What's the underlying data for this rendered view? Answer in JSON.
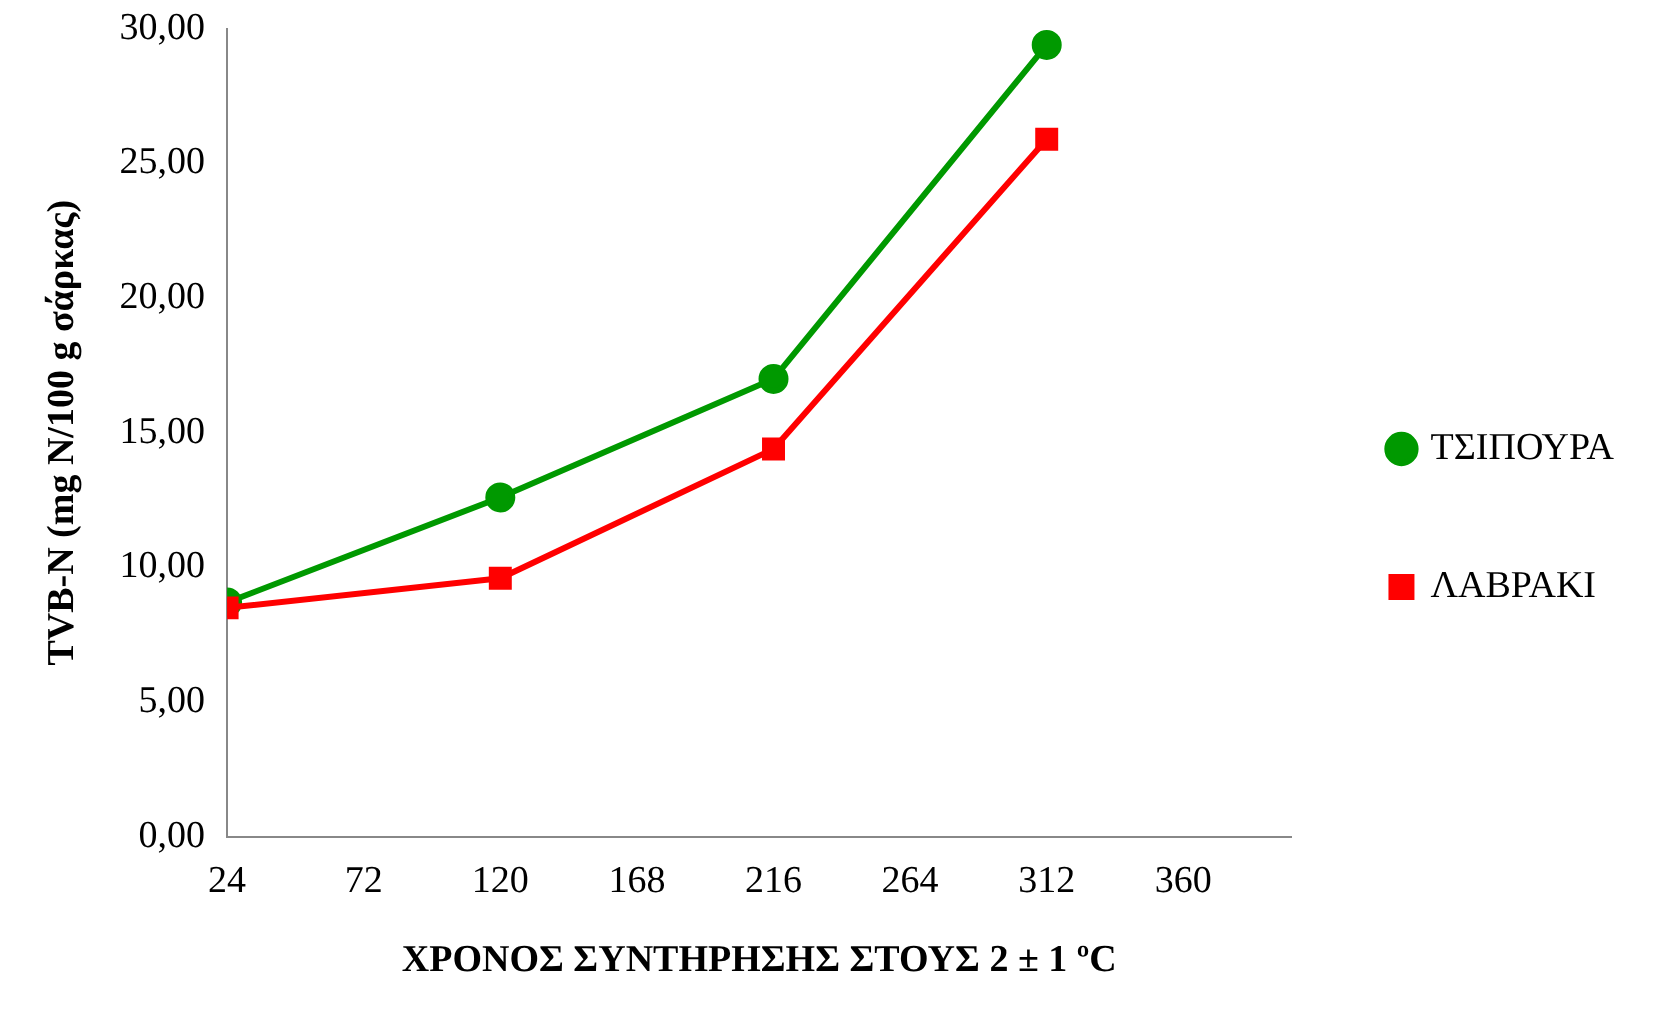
{
  "chart_data": {
    "type": "line",
    "xlabel": "ΧΡΟΝΟΣ ΣΥΝΤΗΡΗΣΗΣ ΣΤΟΥΣ 2 ± 1 ºC",
    "ylabel": "TVB-N (mg N/100 g σάρκας)",
    "x": [
      24,
      120,
      216,
      312
    ],
    "series": [
      {
        "name": "ΤΣΙΠΟΥΡΑ",
        "color": "#009900",
        "marker": "circle",
        "values": [
          8.7,
          12.6,
          17.0,
          29.4
        ]
      },
      {
        "name": "ΛΑΒΡΑΚΙ",
        "color": "#ff0000",
        "marker": "square",
        "values": [
          8.5,
          9.6,
          14.4,
          25.9
        ]
      }
    ],
    "xlim": [
      24,
      398
    ],
    "xticks": [
      24,
      72,
      120,
      168,
      216,
      264,
      312,
      360
    ],
    "ylim": [
      0,
      30
    ],
    "yticks": [
      {
        "value": 0,
        "label": "0,00"
      },
      {
        "value": 5,
        "label": "5,00"
      },
      {
        "value": 10,
        "label": "10,00"
      },
      {
        "value": 15,
        "label": "15,00"
      },
      {
        "value": 20,
        "label": "20,00"
      },
      {
        "value": 25,
        "label": "25,00"
      },
      {
        "value": 30,
        "label": "30,00"
      }
    ],
    "grid": false,
    "legend": "right",
    "line_style": "solid"
  }
}
